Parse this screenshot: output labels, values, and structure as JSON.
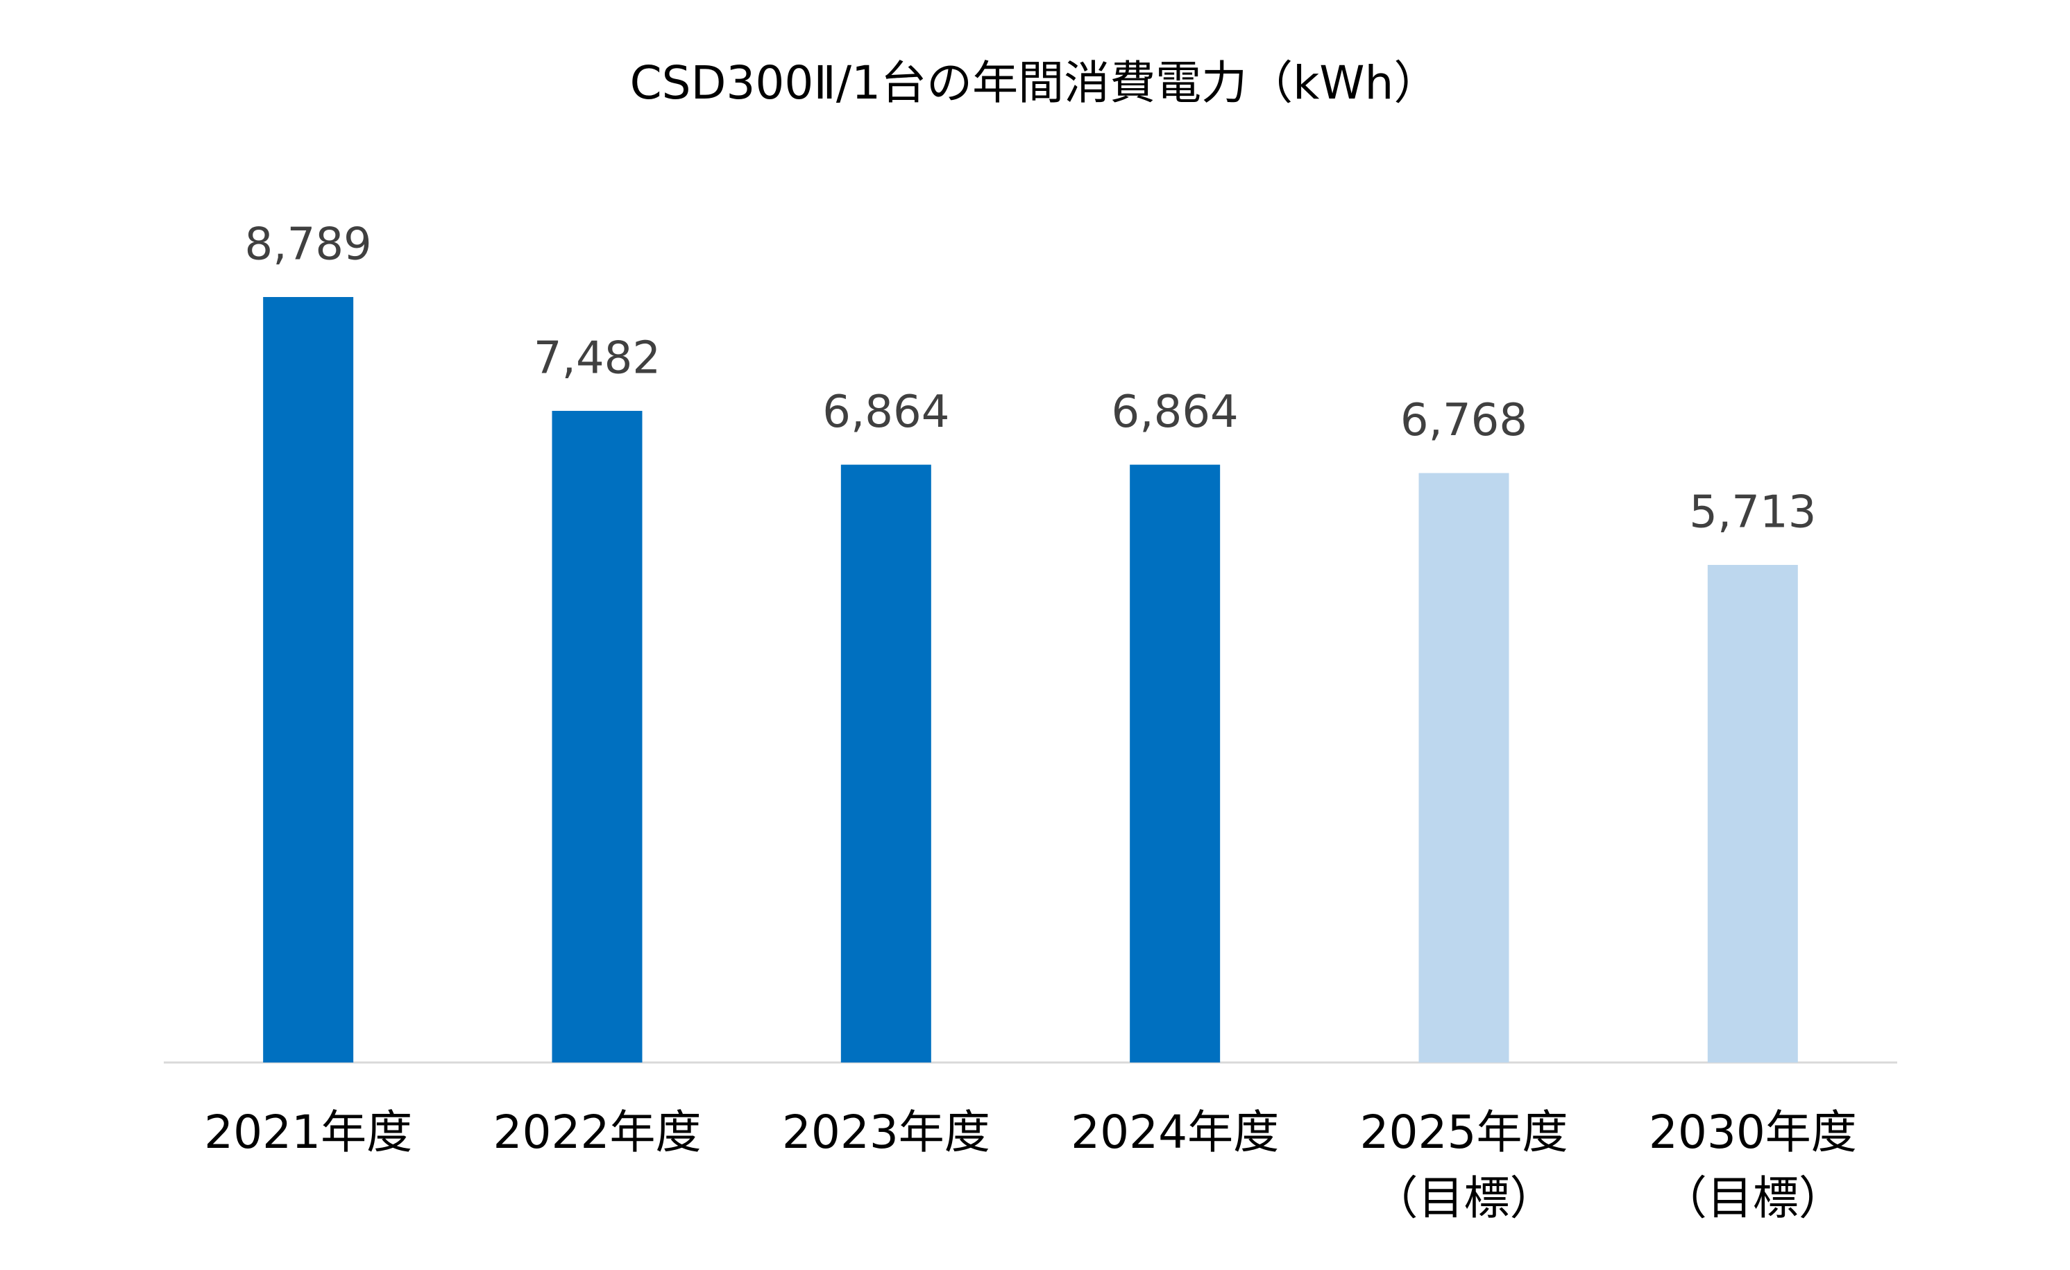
{
  "chart_data": {
    "type": "bar",
    "title": "CSD300Ⅱ/1台の年間消費電力（kWh）",
    "categories": [
      [
        "2021年度"
      ],
      [
        "2022年度"
      ],
      [
        "2023年度"
      ],
      [
        "2024年度"
      ],
      [
        "2025年度",
        "（目標）"
      ],
      [
        "2030年度",
        "（目標）"
      ]
    ],
    "values": [
      8789,
      7482,
      6864,
      6864,
      6768,
      5713
    ],
    "value_labels": [
      "8,789",
      "7,482",
      "6,864",
      "6,864",
      "6,768",
      "5,713"
    ],
    "colors": [
      "#0070c0",
      "#0070c0",
      "#0070c0",
      "#0070c0",
      "#bdd7ee",
      "#bdd7ee"
    ]
  }
}
